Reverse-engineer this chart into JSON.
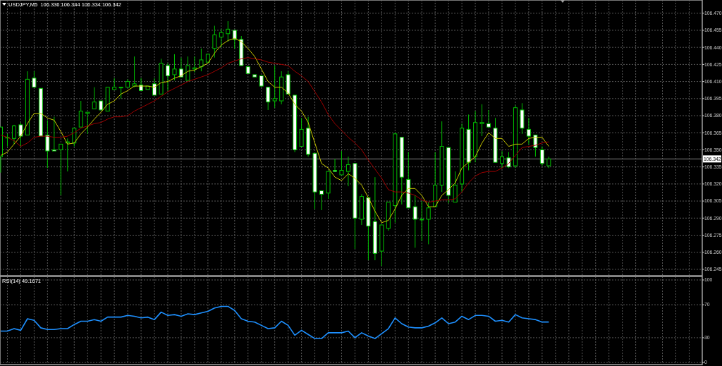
{
  "chart_data": [
    {
      "type": "candlestick",
      "title": "USDJPY,M5  106.336 106.344 106.334 106.342",
      "categories": [
        null,
        null,
        null,
        null,
        null,
        null,
        null,
        null,
        null,
        null,
        null,
        null,
        null,
        null,
        null,
        null,
        null,
        null,
        null,
        null,
        null,
        null,
        null,
        null,
        null,
        null,
        null,
        null,
        null,
        null,
        null,
        null,
        null,
        null,
        null,
        null,
        null,
        null,
        null,
        null,
        null,
        null,
        null,
        null,
        null,
        null,
        null,
        null,
        null,
        null,
        null,
        null,
        null,
        null,
        null,
        null,
        null,
        null,
        null,
        null,
        null,
        null,
        null,
        null,
        null,
        null,
        null,
        null,
        null,
        null,
        null,
        null,
        null,
        null,
        null,
        null,
        null,
        null,
        null,
        null,
        null,
        null,
        null
      ],
      "series": [
        {
          "color": "#00c000",
          "colors": [
            "#000000",
            "#000000",
            "#000000",
            "#ffffff",
            "#000000",
            "#ffffff",
            "#ffffff",
            "#ffffff",
            "#ffffff",
            "#000000",
            "#000000",
            "#000000",
            "#000000",
            "#000000",
            "#000000",
            "#ffffff",
            "#000000",
            "#000000",
            "#000000",
            "#000000",
            "#000000",
            "#ffffff",
            "#000000",
            "#ffffff",
            "#000000",
            "#ffffff",
            "#000000",
            "#ffffff",
            "#000000",
            "#000000",
            "#000000",
            "#000000",
            "#000000",
            "#000000",
            "#000000",
            "#ffffff",
            "#ffffff",
            "#ffffff",
            "#ffffff",
            "#ffffff",
            "#ffffff",
            "#000000",
            "#000000",
            "#ffffff",
            "#ffffff",
            "#000000",
            "#ffffff",
            "#ffffff",
            "#ffffff",
            "#000000",
            "#ffffff",
            "#000000",
            "#000000",
            "#ffffff",
            "#000000",
            "#ffffff",
            "#ffffff",
            "#000000",
            "#000000",
            "#000000",
            "#ffffff",
            "#ffffff",
            "#ffffff",
            "#000000",
            "#000000",
            "#000000",
            "#000000",
            "#ffffff",
            "#000000",
            "#000000",
            "#ffffff",
            "#000000",
            "#000000",
            "#ffffff",
            "#ffffff",
            "#000000",
            "#ffffff",
            "#000000",
            "#ffffff",
            "#ffffff",
            "#ffffff",
            "#ffffff",
            "#000000"
          ],
          "ohlc": [
            [
              106.344,
              106.37,
              106.33,
              106.37
            ],
            [
              106.361,
              106.364,
              106.353,
              106.361
            ],
            [
              106.36,
              106.372,
              106.355,
              106.371
            ],
            [
              106.372,
              106.374,
              106.353,
              106.362
            ],
            [
              106.363,
              106.419,
              106.363,
              106.412
            ],
            [
              106.413,
              106.419,
              106.405,
              106.405
            ],
            [
              106.404,
              106.404,
              106.362,
              106.362
            ],
            [
              106.363,
              106.376,
              106.334,
              106.349
            ],
            [
              106.35,
              106.379,
              106.349,
              106.349
            ],
            [
              106.35,
              106.355,
              106.31,
              106.355
            ],
            [
              106.356,
              106.36,
              106.331,
              106.357
            ],
            [
              106.356,
              106.369,
              106.353,
              106.369
            ],
            [
              106.37,
              106.393,
              106.37,
              106.384
            ],
            [
              106.382,
              106.383,
              106.364,
              106.383
            ],
            [
              106.386,
              106.405,
              106.386,
              106.392
            ],
            [
              106.393,
              106.393,
              106.385,
              106.385
            ],
            [
              106.384,
              106.405,
              106.384,
              106.405
            ],
            [
              106.403,
              106.413,
              106.403,
              106.405
            ],
            [
              106.405,
              106.405,
              106.395,
              106.405
            ],
            [
              106.405,
              106.412,
              106.405,
              106.41
            ],
            [
              106.406,
              106.432,
              106.405,
              106.408
            ],
            [
              106.407,
              106.413,
              106.402,
              106.402
            ],
            [
              106.403,
              106.406,
              106.403,
              106.406
            ],
            [
              106.408,
              106.413,
              106.398,
              106.398
            ],
            [
              106.399,
              106.43,
              106.399,
              106.426
            ],
            [
              106.424,
              106.426,
              106.402,
              106.415
            ],
            [
              106.416,
              106.434,
              106.411,
              106.421
            ],
            [
              106.421,
              106.431,
              106.414,
              106.414
            ],
            [
              106.411,
              106.432,
              106.411,
              106.424
            ],
            [
              106.421,
              106.432,
              106.418,
              106.422
            ],
            [
              106.423,
              106.439,
              106.419,
              106.429
            ],
            [
              106.427,
              106.434,
              106.427,
              106.434
            ],
            [
              106.439,
              106.459,
              106.431,
              106.451
            ],
            [
              106.449,
              106.456,
              106.44,
              106.453
            ],
            [
              106.452,
              106.463,
              106.445,
              106.456
            ],
            [
              106.455,
              106.455,
              106.439,
              106.447
            ],
            [
              106.447,
              106.45,
              106.424,
              106.424
            ],
            [
              106.423,
              106.423,
              106.417,
              106.417
            ],
            [
              106.416,
              106.416,
              106.414,
              106.414
            ],
            [
              106.415,
              106.415,
              106.405,
              106.406
            ],
            [
              106.405,
              106.405,
              106.385,
              106.392
            ],
            [
              106.393,
              106.424,
              106.387,
              106.395
            ],
            [
              106.393,
              106.419,
              106.39,
              106.414
            ],
            [
              106.416,
              106.419,
              106.399,
              106.399
            ],
            [
              106.398,
              106.398,
              106.348,
              106.35
            ],
            [
              106.353,
              106.378,
              106.353,
              106.368
            ],
            [
              106.369,
              106.379,
              106.344,
              106.346
            ],
            [
              106.347,
              106.347,
              106.298,
              106.313
            ],
            [
              106.314,
              106.314,
              106.297,
              106.311
            ],
            [
              106.312,
              106.331,
              106.307,
              106.331
            ],
            [
              106.332,
              106.342,
              106.331,
              106.331
            ],
            [
              106.328,
              106.349,
              106.328,
              106.332
            ],
            [
              106.331,
              106.344,
              106.318,
              106.337
            ],
            [
              106.338,
              106.338,
              106.263,
              106.29
            ],
            [
              106.289,
              106.311,
              106.284,
              106.309
            ],
            [
              106.308,
              106.308,
              106.253,
              106.283
            ],
            [
              106.287,
              106.326,
              106.253,
              106.259
            ],
            [
              106.261,
              106.284,
              106.248,
              106.284
            ],
            [
              106.281,
              106.304,
              106.279,
              106.304
            ],
            [
              106.301,
              106.365,
              106.286,
              106.364
            ],
            [
              106.361,
              106.361,
              106.302,
              106.326
            ],
            [
              106.324,
              106.348,
              106.299,
              106.299
            ],
            [
              106.3,
              106.31,
              106.264,
              106.289
            ],
            [
              106.289,
              106.305,
              106.27,
              106.289
            ],
            [
              106.289,
              106.304,
              106.267,
              106.299
            ],
            [
              106.3,
              106.348,
              106.3,
              106.319
            ],
            [
              106.319,
              106.375,
              106.313,
              106.353
            ],
            [
              106.352,
              106.352,
              106.303,
              106.31
            ],
            [
              106.304,
              106.331,
              106.304,
              106.319
            ],
            [
              106.32,
              106.373,
              106.313,
              106.369
            ],
            [
              106.368,
              106.381,
              106.332,
              106.339
            ],
            [
              106.344,
              106.384,
              106.339,
              106.374
            ],
            [
              106.373,
              106.39,
              106.362,
              106.374
            ],
            [
              106.373,
              106.385,
              106.37,
              106.37
            ],
            [
              106.369,
              106.378,
              106.339,
              106.339
            ],
            [
              106.338,
              106.349,
              106.334,
              106.344
            ],
            [
              106.343,
              106.348,
              106.334,
              106.335
            ],
            [
              106.336,
              106.389,
              106.334,
              106.387
            ],
            [
              106.385,
              106.391,
              106.364,
              106.369
            ],
            [
              106.368,
              106.378,
              106.355,
              106.362
            ],
            [
              106.363,
              106.363,
              106.344,
              106.352
            ],
            [
              106.35,
              106.353,
              106.336,
              106.338
            ],
            [
              106.336,
              106.344,
              106.334,
              106.342
            ]
          ]
        },
        {
          "type": "line",
          "color": "#c8c800",
          "values": [
            106.345,
            106.348,
            106.355,
            106.362,
            106.373,
            106.382,
            106.382,
            106.378,
            106.376,
            106.366,
            106.355,
            106.356,
            106.364,
            106.37,
            106.377,
            106.383,
            106.39,
            106.393,
            106.399,
            106.402,
            106.406,
            106.406,
            106.406,
            106.405,
            106.409,
            106.41,
            106.413,
            106.415,
            106.419,
            106.42,
            106.423,
            106.426,
            106.435,
            106.442,
            106.446,
            106.448,
            106.445,
            106.439,
            106.432,
            106.421,
            106.41,
            106.405,
            106.405,
            106.4,
            106.39,
            106.384,
            106.374,
            106.356,
            106.338,
            106.334,
            106.326,
            106.323,
            106.329,
            106.325,
            106.319,
            106.308,
            106.296,
            106.286,
            106.288,
            106.298,
            106.31,
            106.316,
            106.316,
            106.31,
            106.3,
            106.3,
            106.31,
            106.315,
            106.321,
            106.334,
            106.339,
            106.344,
            106.356,
            106.365,
            106.36,
            106.36,
            106.353,
            106.355,
            106.355,
            106.36,
            106.361,
            106.361,
            106.353
          ]
        },
        {
          "type": "line",
          "color": "#a00000",
          "values": [
            106.363,
            106.361,
            106.358,
            106.353,
            106.356,
            106.361,
            106.362,
            106.362,
            106.361,
            106.361,
            106.362,
            106.365,
            106.369,
            106.371,
            106.373,
            106.374,
            106.377,
            106.379,
            106.379,
            106.38,
            106.384,
            106.387,
            106.39,
            106.393,
            106.397,
            106.401,
            106.404,
            106.407,
            106.41,
            106.412,
            106.414,
            106.416,
            106.419,
            106.422,
            106.426,
            106.428,
            106.43,
            106.431,
            106.43,
            106.429,
            106.427,
            106.426,
            106.425,
            106.424,
            106.419,
            106.415,
            106.41,
            106.401,
            106.392,
            106.381,
            106.373,
            106.367,
            106.361,
            106.356,
            106.35,
            106.341,
            106.333,
            106.325,
            106.315,
            106.313,
            106.313,
            106.312,
            106.31,
            106.306,
            106.304,
            106.305,
            106.306,
            106.306,
            106.307,
            106.313,
            106.321,
            106.327,
            106.33,
            106.331,
            106.331,
            106.334,
            106.338,
            106.345,
            106.352,
            106.353,
            106.354,
            106.356,
            106.357
          ]
        }
      ],
      "ylim": [
        106.24,
        106.481
      ],
      "yticks": [
        {
          "value": 106.245,
          "label": "106.245"
        },
        {
          "value": 106.26,
          "label": "106.260"
        },
        {
          "value": 106.275,
          "label": "106.275"
        },
        {
          "value": 106.29,
          "label": "106.290"
        },
        {
          "value": 106.305,
          "label": "106.305"
        },
        {
          "value": 106.32,
          "label": "106.320"
        },
        {
          "value": 106.335,
          "label": "106.335"
        },
        {
          "value": 106.35,
          "label": "106.350"
        },
        {
          "value": 106.365,
          "label": "106.365"
        },
        {
          "value": 106.38,
          "label": "106.380"
        },
        {
          "value": 106.395,
          "label": "106.395"
        },
        {
          "value": 106.41,
          "label": "106.410"
        },
        {
          "value": 106.425,
          "label": "106.425"
        },
        {
          "value": 106.44,
          "label": "106.440"
        },
        {
          "value": 106.455,
          "label": "106.455"
        },
        {
          "value": 106.47,
          "label": "106.470"
        }
      ],
      "grid": true,
      "tick_labels": "y",
      "ref_lines": [
        {
          "axis": "y",
          "value": 106.342,
          "label": "106.342",
          "color": "#808080"
        }
      ]
    },
    {
      "type": "line",
      "title": "RSI(14) 49.1671",
      "categories": [
        null,
        null,
        null,
        null,
        null,
        null,
        null,
        null,
        null,
        null,
        null,
        null,
        null,
        null,
        null,
        null,
        null,
        null,
        null,
        null,
        null,
        null,
        null,
        null,
        null,
        null,
        null,
        null,
        null,
        null,
        null,
        null,
        null,
        null,
        null,
        null,
        null,
        null,
        null,
        null,
        null,
        null,
        null,
        null,
        null,
        null,
        null,
        null,
        null,
        null,
        null,
        null,
        null,
        null,
        null,
        null,
        null,
        null,
        null,
        null,
        null,
        null,
        null,
        null,
        null,
        null,
        null,
        null,
        null,
        null,
        null,
        null,
        null,
        null,
        null,
        null,
        null,
        null,
        null,
        null,
        null,
        null,
        null
      ],
      "series": [
        {
          "color": "#1e90ff",
          "values": [
            38,
            38,
            41,
            39,
            53,
            51,
            42,
            40,
            40,
            41,
            41,
            46,
            50,
            50,
            52,
            50,
            55,
            55,
            55,
            57,
            56,
            54,
            55,
            52,
            61,
            57,
            58,
            56,
            59,
            58,
            60,
            62,
            66,
            68,
            68,
            63,
            53,
            50,
            49,
            45,
            41,
            42,
            50,
            45,
            33,
            39,
            34,
            29,
            29,
            36,
            36,
            36,
            38,
            30,
            36,
            32,
            29,
            35,
            41,
            54,
            47,
            43,
            42,
            42,
            44,
            48,
            54,
            47,
            49,
            56,
            52,
            57,
            57,
            56,
            50,
            51,
            49,
            58,
            54,
            53,
            52,
            49,
            49
          ]
        }
      ],
      "ylim": [
        0,
        100
      ],
      "yticks": [
        100,
        70,
        30,
        0
      ],
      "grid": true,
      "tick_labels": "y"
    }
  ]
}
